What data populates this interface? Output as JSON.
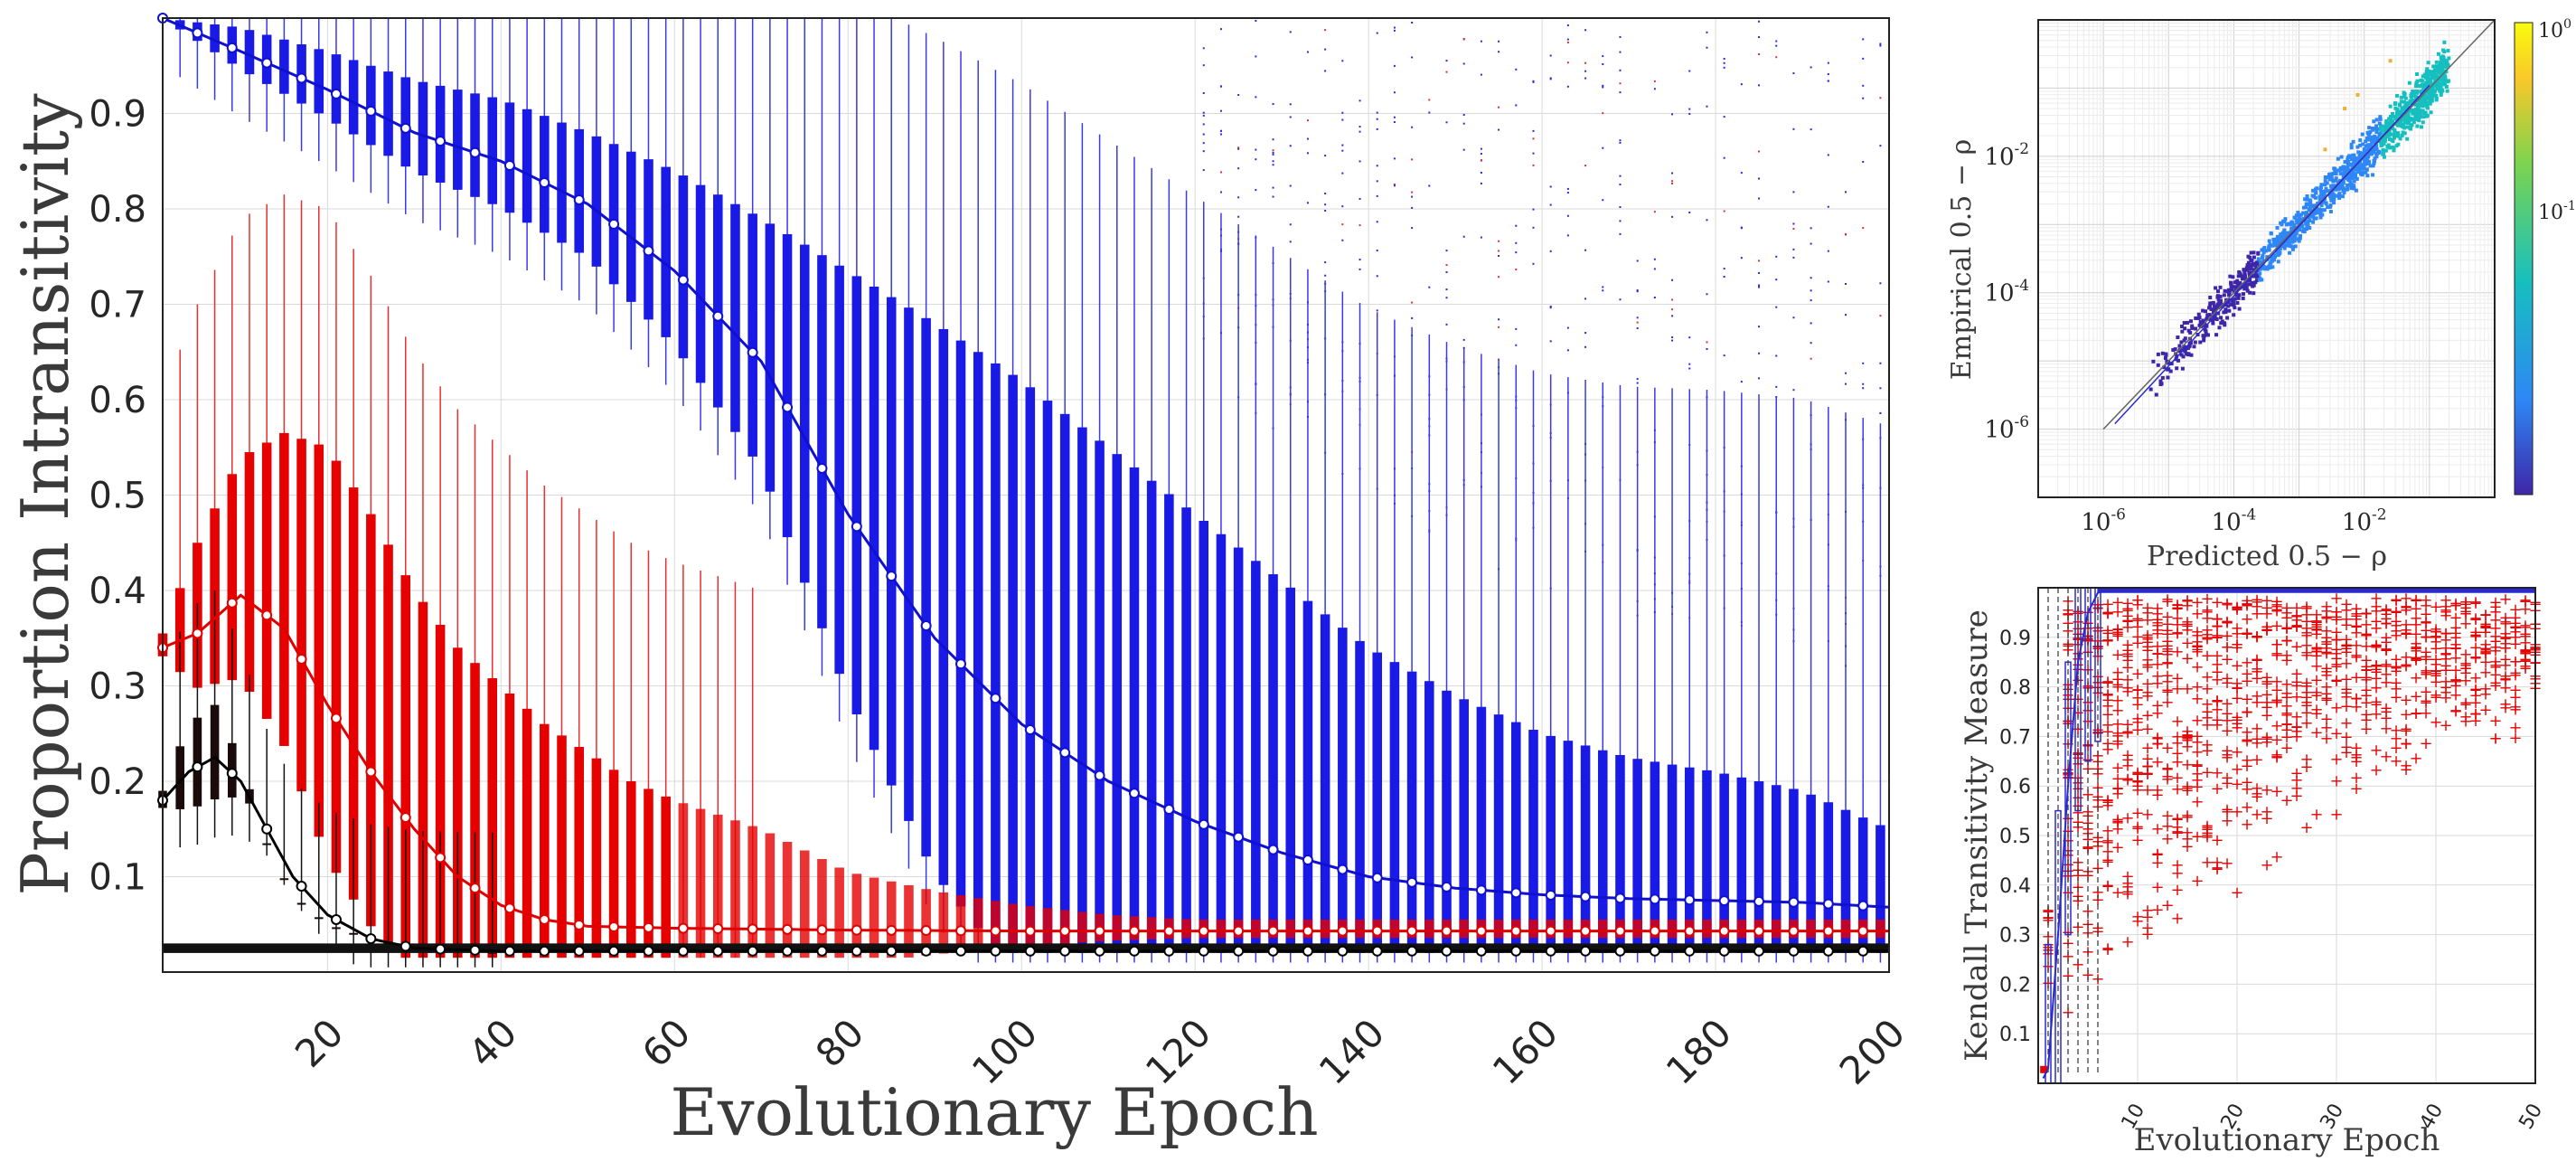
{
  "chart_data": [
    {
      "type": "box",
      "title": "",
      "xlabel": "Evolutionary Epoch",
      "ylabel": "Proportion Intransitivity",
      "xlim": [
        1,
        200
      ],
      "ylim": [
        0,
        1
      ],
      "x_ticks": [
        20,
        40,
        60,
        80,
        100,
        120,
        140,
        160,
        180,
        200
      ],
      "y_ticks": [
        0.1,
        0.2,
        0.3,
        0.4,
        0.5,
        0.6,
        0.7,
        0.8,
        0.9
      ],
      "grid": true,
      "series": [
        {
          "color": "#1f1fe6",
          "points": [
            [
              1,
              1.0
            ],
            [
              10,
              0.965
            ],
            [
              20,
              0.925
            ],
            [
              30,
              0.88
            ],
            [
              40,
              0.85
            ],
            [
              50,
              0.805
            ],
            [
              60,
              0.735
            ],
            [
              70,
              0.64
            ],
            [
              80,
              0.48
            ],
            [
              90,
              0.35
            ],
            [
              100,
              0.26
            ],
            [
              110,
              0.2
            ],
            [
              120,
              0.158
            ],
            [
              130,
              0.125
            ],
            [
              140,
              0.1
            ],
            [
              150,
              0.088
            ],
            [
              160,
              0.081
            ],
            [
              170,
              0.077
            ],
            [
              180,
              0.075
            ],
            [
              190,
              0.073
            ],
            [
              200,
              0.068
            ]
          ],
          "box_top": [
            [
              1,
              1.0
            ],
            [
              10,
              0.99
            ],
            [
              20,
              0.965
            ],
            [
              30,
              0.935
            ],
            [
              40,
              0.915
            ],
            [
              50,
              0.88
            ],
            [
              60,
              0.84
            ],
            [
              70,
              0.79
            ],
            [
              80,
              0.735
            ],
            [
              90,
              0.68
            ],
            [
              100,
              0.62
            ],
            [
              110,
              0.55
            ],
            [
              120,
              0.48
            ],
            [
              130,
              0.41
            ],
            [
              140,
              0.34
            ],
            [
              150,
              0.29
            ],
            [
              160,
              0.25
            ],
            [
              170,
              0.225
            ],
            [
              180,
              0.21
            ],
            [
              190,
              0.19
            ],
            [
              200,
              0.15
            ]
          ]
        },
        {
          "color": "#e60000",
          "points": [
            [
              1,
              0.34
            ],
            [
              5,
              0.355
            ],
            [
              10,
              0.395
            ],
            [
              15,
              0.36
            ],
            [
              20,
              0.28
            ],
            [
              25,
              0.21
            ],
            [
              30,
              0.15
            ],
            [
              35,
              0.1
            ],
            [
              40,
              0.07
            ],
            [
              45,
              0.055
            ],
            [
              50,
              0.048
            ],
            [
              60,
              0.046
            ],
            [
              80,
              0.044
            ],
            [
              100,
              0.043
            ],
            [
              150,
              0.043
            ],
            [
              200,
              0.043
            ]
          ],
          "box_top": [
            [
              1,
              0.355
            ],
            [
              5,
              0.45
            ],
            [
              10,
              0.54
            ],
            [
              15,
              0.565
            ],
            [
              20,
              0.55
            ],
            [
              25,
              0.48
            ],
            [
              30,
              0.4
            ],
            [
              35,
              0.34
            ],
            [
              40,
              0.3
            ],
            [
              45,
              0.26
            ],
            [
              50,
              0.23
            ],
            [
              55,
              0.2
            ],
            [
              60,
              0.18
            ],
            [
              70,
              0.15
            ],
            [
              80,
              0.105
            ],
            [
              90,
              0.085
            ],
            [
              100,
              0.07
            ],
            [
              110,
              0.06
            ],
            [
              120,
              0.055
            ],
            [
              150,
              0.055
            ],
            [
              200,
              0.055
            ]
          ]
        },
        {
          "color": "#000000",
          "points": [
            [
              1,
              0.18
            ],
            [
              4,
              0.21
            ],
            [
              7,
              0.225
            ],
            [
              10,
              0.2
            ],
            [
              13,
              0.15
            ],
            [
              16,
              0.1
            ],
            [
              20,
              0.06
            ],
            [
              25,
              0.035
            ],
            [
              30,
              0.025
            ],
            [
              40,
              0.022
            ],
            [
              60,
              0.022
            ],
            [
              100,
              0.022
            ],
            [
              150,
              0.022
            ],
            [
              200,
              0.022
            ]
          ],
          "box_top": [
            [
              1,
              0.19
            ],
            [
              4,
              0.26
            ],
            [
              7,
              0.28
            ],
            [
              10,
              0.22
            ],
            [
              13,
              0.135
            ],
            [
              16,
              0.08
            ],
            [
              20,
              0.05
            ],
            [
              25,
              0.035
            ],
            [
              30,
              0.028
            ],
            [
              40,
              0.026
            ],
            [
              200,
              0.026
            ]
          ]
        }
      ]
    },
    {
      "type": "scatter",
      "title": "",
      "xlabel": "Predicted 0.5 − ρ",
      "ylabel": "Empirical 0.5 − ρ",
      "xscale": "log",
      "yscale": "log",
      "xlim": [
        1e-07,
        1
      ],
      "ylim": [
        1e-07,
        1
      ],
      "x_ticks": [
        "10-6",
        "10-4",
        "10-2"
      ],
      "y_ticks": [
        "10-6",
        "10-4",
        "10-2"
      ],
      "colorbar": {
        "colormap": "parula",
        "scale": "log",
        "ticks": [
          "10-1",
          "100"
        ],
        "colors": [
          "#3e26a8",
          "#2e87f5",
          "#16bfbf",
          "#7bd44f",
          "#f9c72a",
          "#f9fb0e"
        ]
      },
      "grid": true,
      "reference_line": "y = x",
      "trend": [
        [
          1.5e-06,
          1.2e-06
        ],
        [
          0.0001,
          9e-05
        ],
        [
          0.01,
          0.01
        ],
        [
          0.1,
          0.11
        ]
      ]
    },
    {
      "type": "box",
      "title": "",
      "xlabel": "Evolutionary Epoch",
      "ylabel": "Kendall Transitivity Measure",
      "xlim": [
        0,
        50
      ],
      "ylim": [
        0,
        1
      ],
      "x_ticks": [
        10,
        20,
        30,
        40,
        50
      ],
      "y_ticks": [
        0.1,
        0.2,
        0.3,
        0.4,
        0.5,
        0.6,
        0.7,
        0.8,
        0.9
      ],
      "grid": true,
      "series": [
        {
          "color": "#1f1fe6",
          "points": [
            [
              0.5,
              0.01
            ],
            [
              1,
              0.03
            ],
            [
              2,
              0.3
            ],
            [
              3,
              0.6
            ],
            [
              4,
              0.85
            ],
            [
              5,
              0.95
            ],
            [
              6,
              0.99
            ],
            [
              8,
              1.0
            ],
            [
              50,
              1.0
            ]
          ]
        },
        {
          "color": "#e60000",
          "outliers": "plus markers between 0.1 and 0.98"
        }
      ]
    }
  ]
}
